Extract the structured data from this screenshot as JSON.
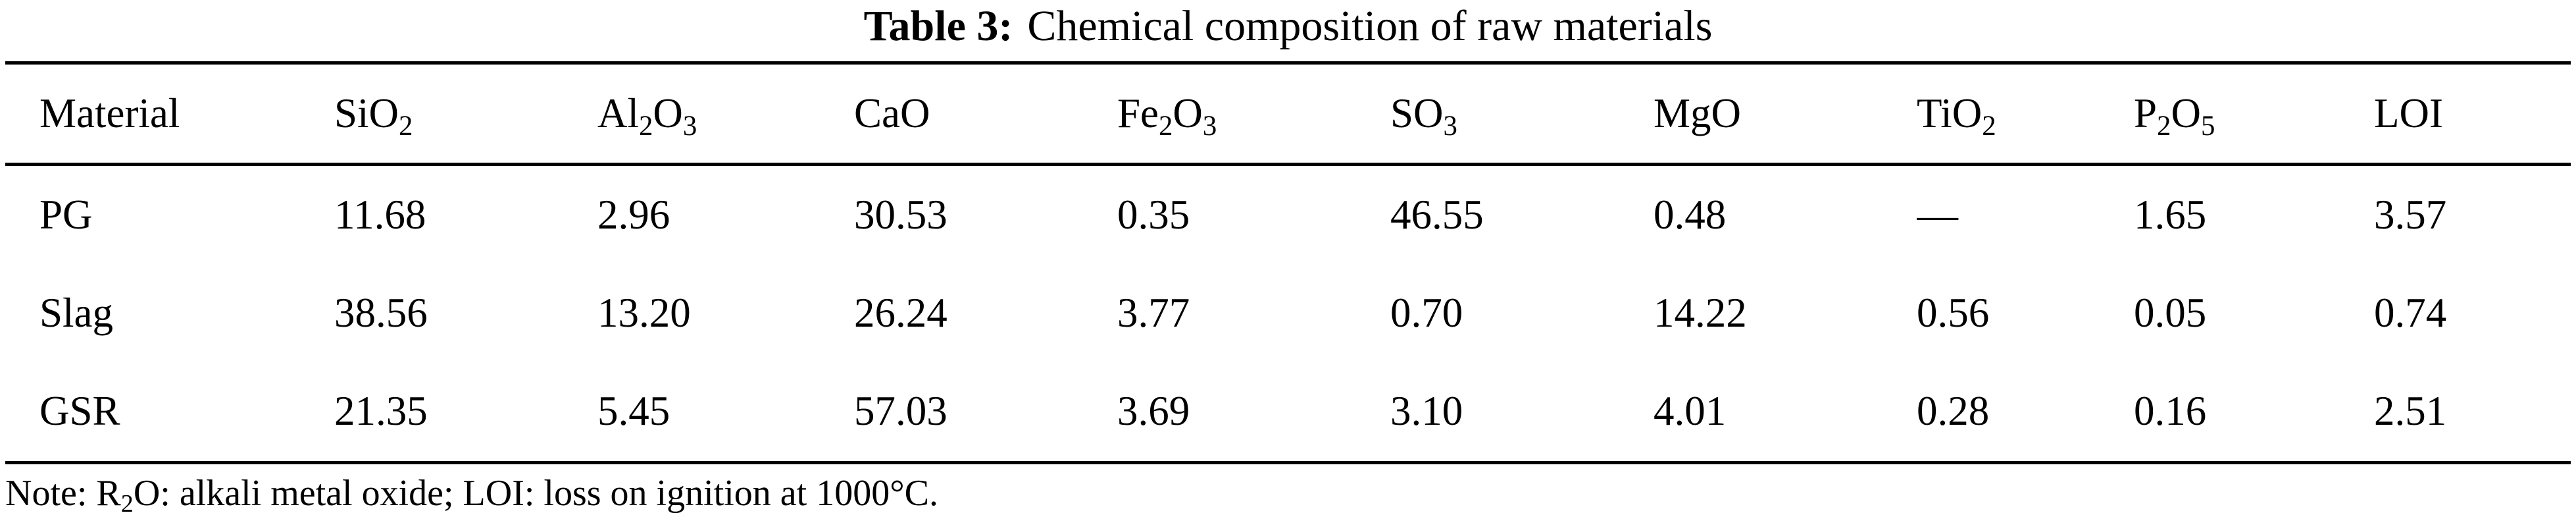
{
  "caption": {
    "label": "Table 3:",
    "text": "Chemical composition of raw materials"
  },
  "chart_data": {
    "type": "table",
    "title": "Table 3: Chemical composition of raw materials",
    "columns": [
      "Material",
      "SiO_2",
      "Al_2O_3",
      "CaO",
      "Fe_2O_3",
      "SO_3",
      "MgO",
      "TiO_2",
      "P_2O_5",
      "LOI"
    ],
    "rows": [
      [
        "PG",
        "11.68",
        "2.96",
        "30.53",
        "0.35",
        "46.55",
        "0.48",
        "—",
        "1.65",
        "3.57"
      ],
      [
        "Slag",
        "38.56",
        "13.20",
        "26.24",
        "3.77",
        "0.70",
        "14.22",
        "0.56",
        "0.05",
        "0.74"
      ],
      [
        "GSR",
        "21.35",
        "5.45",
        "57.03",
        "3.69",
        "3.10",
        "4.01",
        "0.28",
        "0.16",
        "2.51"
      ]
    ]
  },
  "note": "Note: R_2O: alkali metal oxide; LOI: loss on ignition at 1000°C."
}
